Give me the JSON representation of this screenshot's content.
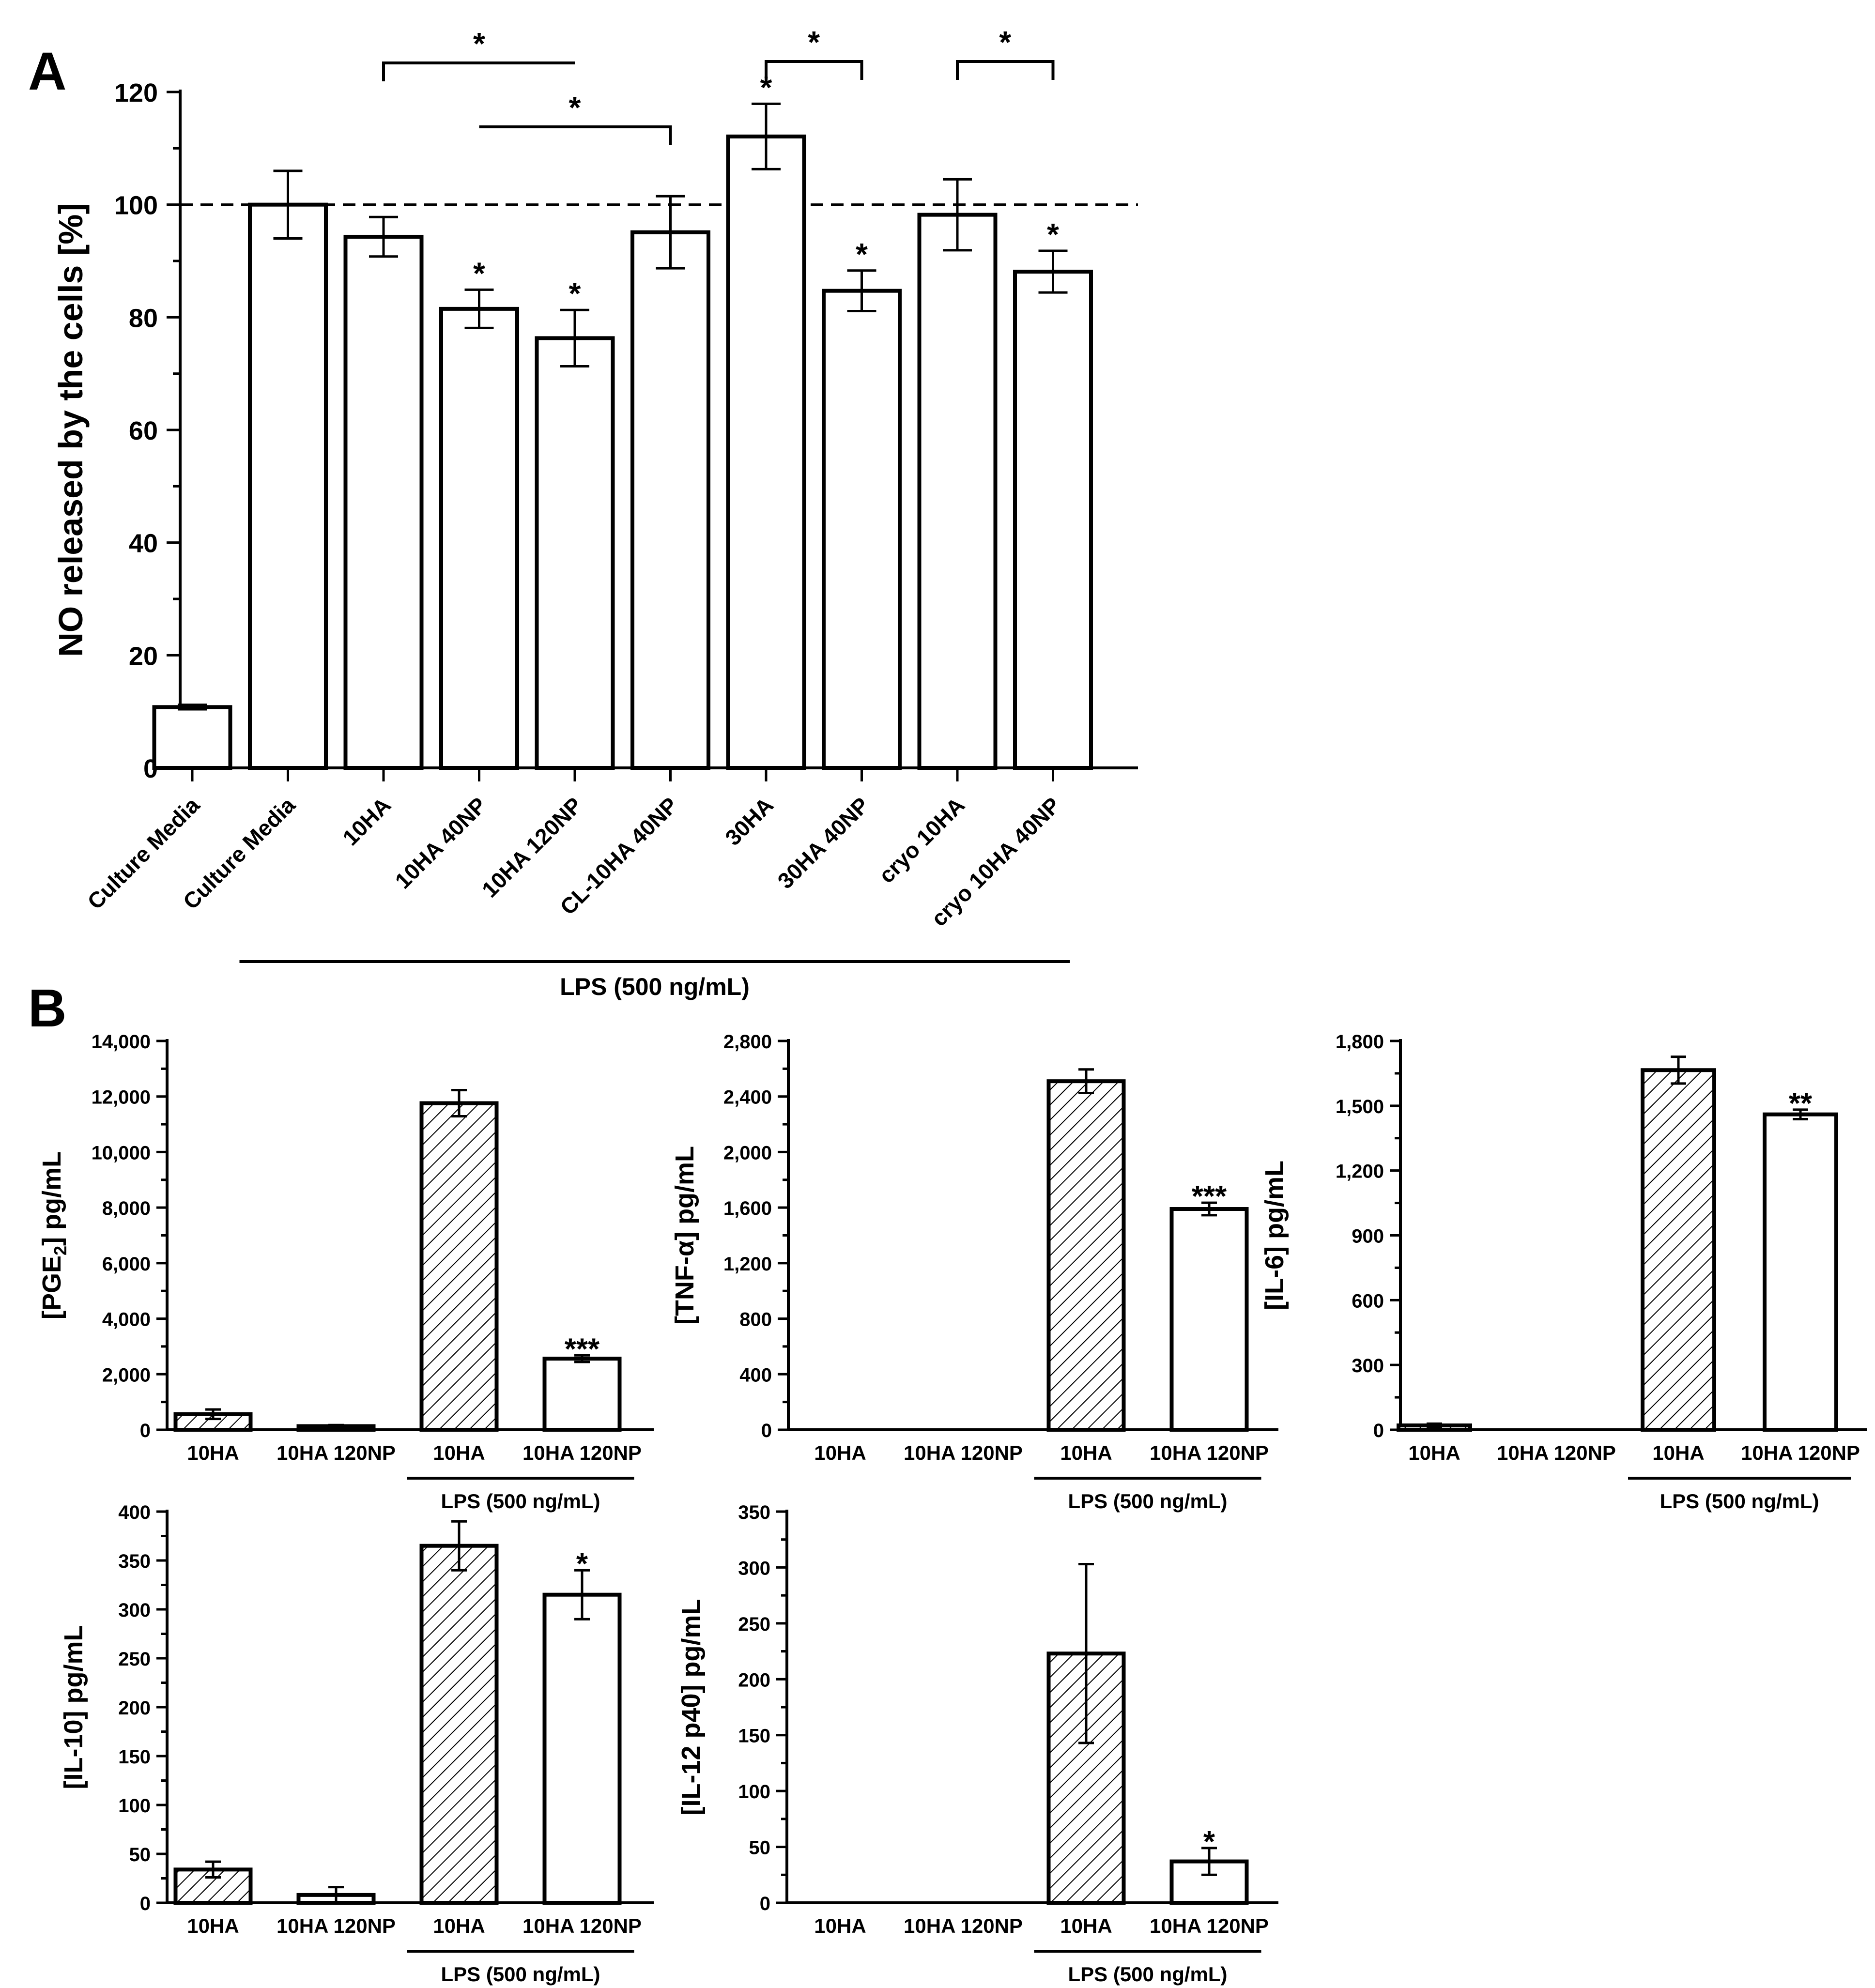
{
  "figure": {
    "panel_a_label": "A",
    "panel_b_label": "B"
  },
  "chart_data": [
    {
      "id": "A",
      "type": "bar",
      "title": "",
      "xlabel": "",
      "ylabel": "NO released by the cells [%]",
      "ylim": [
        0,
        120
      ],
      "yticks": [
        0,
        20,
        40,
        60,
        80,
        100,
        120
      ],
      "reference_line": 100,
      "categories": [
        "Culture Media",
        "Culture Media",
        "10HA",
        "10HA 40NP",
        "10HA 120NP",
        "CL-10HA 40NP",
        "30HA",
        "30HA 40NP",
        "cryo 10HA",
        "cryo 10HA 40NP"
      ],
      "values": [
        10.8,
        100,
        94.3,
        81.5,
        76.3,
        95.1,
        112.1,
        84.7,
        98.2,
        88.1
      ],
      "errors": [
        0.4,
        6.0,
        3.5,
        3.4,
        5.0,
        6.4,
        5.8,
        3.6,
        6.3,
        3.7
      ],
      "significance": [
        "",
        "",
        "",
        "*",
        "*",
        "",
        "*",
        "*",
        "",
        "*"
      ],
      "comparisons": [
        {
          "from": "10HA",
          "to": "10HA 120NP",
          "label": "*"
        },
        {
          "from": "10HA 40NP",
          "to": "CL-10HA 40NP",
          "label": "*"
        },
        {
          "from": "30HA",
          "to": "30HA 40NP",
          "label": "*"
        },
        {
          "from": "cryo 10HA",
          "to": "cryo 10HA 40NP",
          "label": "*"
        }
      ],
      "group_label": "LPS (500 ng/mL)"
    },
    {
      "id": "PGE2",
      "type": "bar",
      "ylabel": "[PGE2] pg/mL",
      "ylim": [
        0,
        14000
      ],
      "yticks": [
        0,
        2000,
        4000,
        6000,
        8000,
        10000,
        12000,
        14000
      ],
      "ytick_labels": [
        "0",
        "2,000",
        "4,000",
        "6,000",
        "8,000",
        "10,000",
        "12,000",
        "14,000"
      ],
      "categories": [
        "10HA",
        "10HA 120NP",
        "10HA",
        "10HA 120NP"
      ],
      "values": [
        560,
        130,
        11760,
        2560
      ],
      "errors": [
        170,
        40,
        470,
        120
      ],
      "significance": [
        "",
        "",
        "",
        "***"
      ],
      "group_label": "LPS (500 ng/mL)"
    },
    {
      "id": "TNF",
      "type": "bar",
      "ylabel": "[TNF-α] pg/mL",
      "ylim": [
        0,
        2800
      ],
      "yticks": [
        0,
        400,
        800,
        1200,
        1600,
        2000,
        2400,
        2800
      ],
      "ytick_labels": [
        "0",
        "400",
        "800",
        "1,200",
        "1,600",
        "2,000",
        "2,400",
        "2,800"
      ],
      "categories": [
        "10HA",
        "10HA 120NP",
        "10HA",
        "10HA 120NP"
      ],
      "values": [
        0,
        0,
        2510,
        1590
      ],
      "errors": [
        0,
        0,
        85,
        45
      ],
      "significance": [
        "",
        "",
        "",
        "***"
      ],
      "group_label": "LPS (500 ng/mL)"
    },
    {
      "id": "IL6",
      "type": "bar",
      "ylabel": "[IL-6] pg/mL",
      "ylim": [
        0,
        1800
      ],
      "yticks": [
        0,
        300,
        600,
        900,
        1200,
        1500,
        1800
      ],
      "ytick_labels": [
        "0",
        "300",
        "600",
        "900",
        "1,200",
        "1,500",
        "1,800"
      ],
      "categories": [
        "10HA",
        "10HA 120NP",
        "10HA",
        "10HA 120NP"
      ],
      "values": [
        20,
        0,
        1665,
        1460
      ],
      "errors": [
        8,
        0,
        62,
        22
      ],
      "significance": [
        "",
        "",
        "",
        "**"
      ],
      "group_label": "LPS (500 ng/mL)"
    },
    {
      "id": "IL10",
      "type": "bar",
      "ylabel": "[IL-10] pg/mL",
      "ylim": [
        0,
        400
      ],
      "yticks": [
        0,
        50,
        100,
        150,
        200,
        250,
        300,
        350,
        400
      ],
      "ytick_labels": [
        "0",
        "50",
        "100",
        "150",
        "200",
        "250",
        "300",
        "350",
        "400"
      ],
      "categories": [
        "10HA",
        "10HA 120NP",
        "10HA",
        "10HA 120NP"
      ],
      "values": [
        34,
        8,
        365,
        315
      ],
      "errors": [
        8,
        8,
        25,
        25
      ],
      "significance": [
        "",
        "",
        "",
        "*"
      ],
      "group_label": "LPS (500 ng/mL)"
    },
    {
      "id": "IL12",
      "type": "bar",
      "ylabel": "[IL-12 p40] pg/mL",
      "ylim": [
        0,
        350
      ],
      "yticks": [
        0,
        50,
        100,
        150,
        200,
        250,
        300,
        350
      ],
      "ytick_labels": [
        "0",
        "50",
        "100",
        "150",
        "200",
        "250",
        "300",
        "350"
      ],
      "categories": [
        "10HA",
        "10HA 120NP",
        "10HA",
        "10HA 120NP"
      ],
      "values": [
        0,
        0,
        223,
        37
      ],
      "errors": [
        0,
        0,
        80,
        12
      ],
      "significance": [
        "",
        "",
        "",
        "*"
      ],
      "group_label": "LPS (500 ng/mL)"
    }
  ]
}
